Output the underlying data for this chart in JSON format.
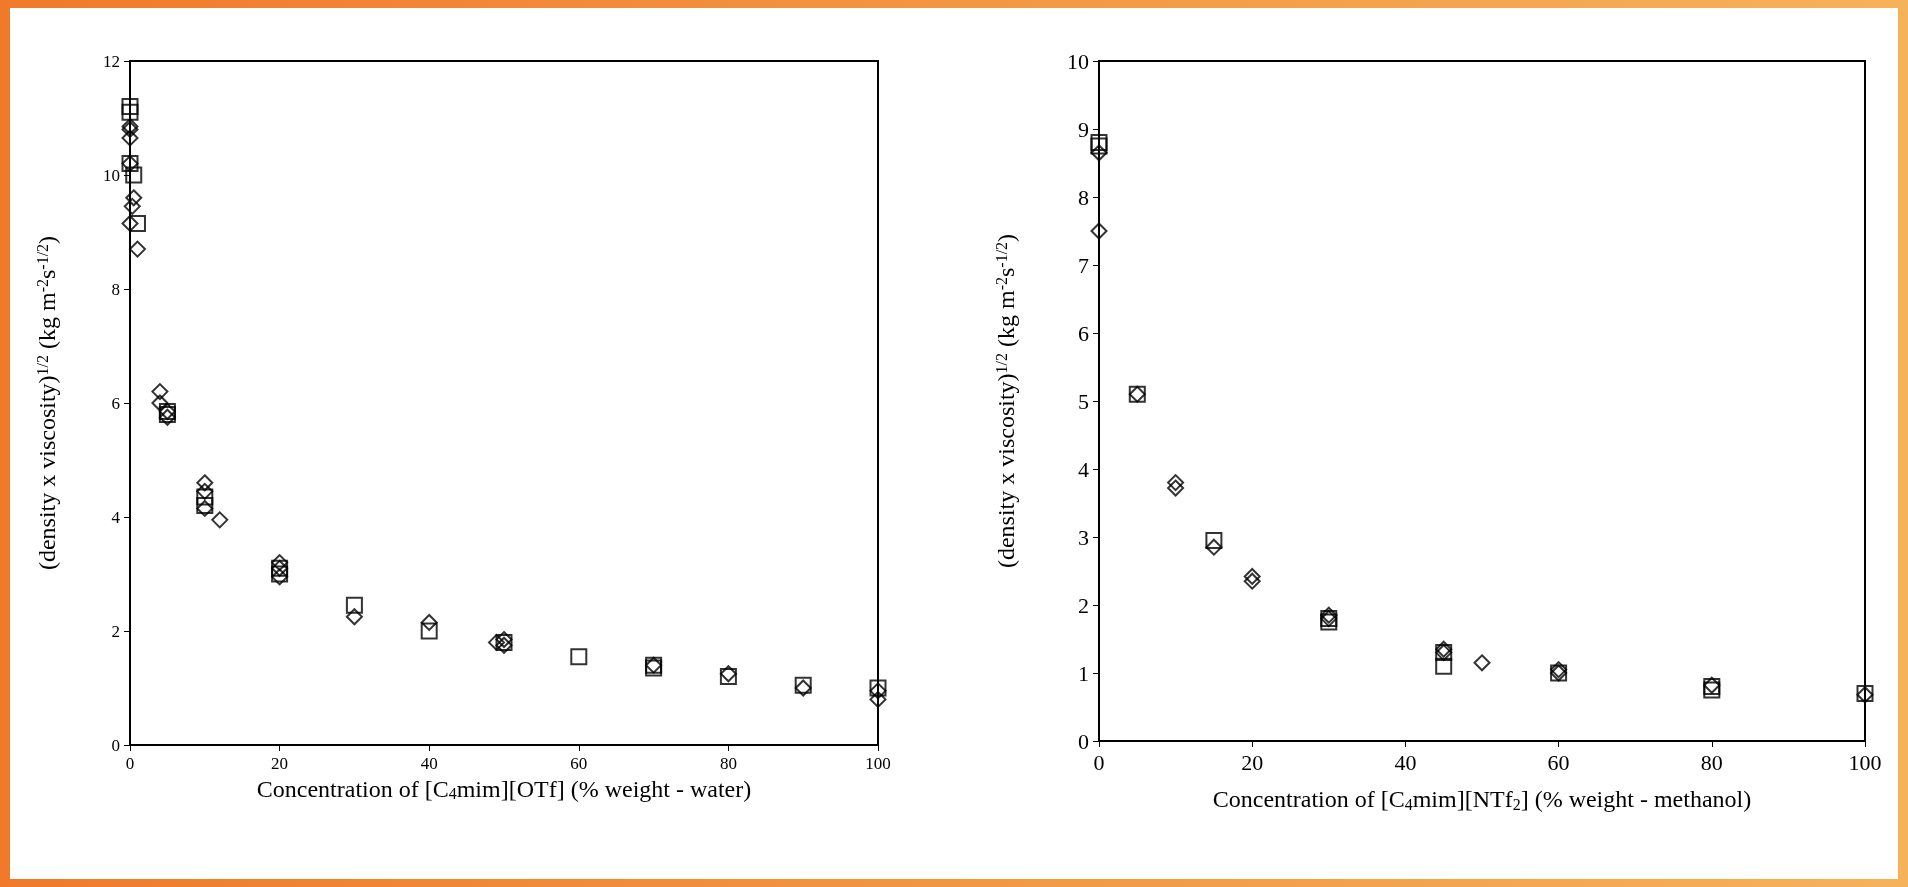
{
  "chart_data": [
    {
      "type": "scatter",
      "xlabel": "Concentration of [C$_{4}$mim][OTf] (% weight - water)",
      "ylabel": "(density x viscosity)$^{1/2}$ (kg m$^{-2}$s$^{-1/2}$)",
      "xlim": [
        0,
        100
      ],
      "xticks": [
        0,
        20,
        40,
        60,
        80,
        100
      ],
      "ylim": [
        0,
        12
      ],
      "yticks": [
        0,
        2,
        4,
        6,
        8,
        10,
        12
      ],
      "grid": false,
      "series": [
        {
          "color": "#000000",
          "marker": "square",
          "x": [
            0,
            0,
            0,
            0.5,
            1,
            5,
            5,
            10,
            10,
            20,
            20,
            30,
            40,
            50,
            60,
            70,
            70,
            80,
            90,
            100
          ],
          "values": [
            11.2,
            11.1,
            10.2,
            10.0,
            9.15,
            5.85,
            5.8,
            4.35,
            4.2,
            3.1,
            3.0,
            2.45,
            2.0,
            1.8,
            1.55,
            1.4,
            1.35,
            1.2,
            1.05,
            1.0
          ]
        },
        {
          "color": "#000000",
          "marker": "diamond",
          "x": [
            0,
            0,
            0,
            0,
            0.5,
            0.3,
            0,
            1,
            4,
            4,
            5,
            5,
            10,
            10,
            10,
            12,
            20,
            20,
            20,
            30,
            40,
            49,
            50,
            50,
            70,
            80,
            90,
            100,
            100
          ],
          "values": [
            10.85,
            10.8,
            10.65,
            10.2,
            9.6,
            9.45,
            9.15,
            8.7,
            6.2,
            6.0,
            5.85,
            5.75,
            4.6,
            4.45,
            4.15,
            3.95,
            3.2,
            3.1,
            2.95,
            2.25,
            2.15,
            1.8,
            1.85,
            1.75,
            1.4,
            1.25,
            1.0,
            0.95,
            0.8
          ]
        }
      ]
    },
    {
      "type": "scatter",
      "xlabel": "Concentration of [C$_{4}$mim][NTf$_{2}$] (% weight - methanol)",
      "ylabel": "(density x viscosity)$^{1/2}$ (kg m$^{-2}$s$^{-1/2}$)",
      "xlim": [
        0,
        100
      ],
      "xticks": [
        0,
        20,
        40,
        60,
        80,
        100
      ],
      "ylim": [
        0,
        10
      ],
      "yticks": [
        0,
        1,
        2,
        3,
        4,
        5,
        6,
        7,
        8,
        9,
        10
      ],
      "grid": false,
      "series": [
        {
          "color": "#000000",
          "marker": "square",
          "x": [
            0,
            0,
            5,
            15,
            30,
            30,
            45,
            45,
            60,
            80,
            80,
            100
          ],
          "values": [
            8.8,
            8.75,
            5.1,
            2.95,
            1.8,
            1.75,
            1.3,
            1.1,
            1.0,
            0.8,
            0.75,
            0.7
          ]
        },
        {
          "color": "#000000",
          "marker": "diamond",
          "x": [
            0,
            0,
            5,
            10,
            10,
            15,
            20,
            20,
            30,
            30,
            45,
            45,
            50,
            60,
            60,
            80,
            100
          ],
          "values": [
            8.65,
            7.5,
            5.1,
            3.8,
            3.72,
            2.85,
            2.42,
            2.35,
            1.85,
            1.8,
            1.35,
            1.3,
            1.15,
            1.05,
            1.0,
            0.82,
            0.68
          ]
        }
      ]
    }
  ]
}
